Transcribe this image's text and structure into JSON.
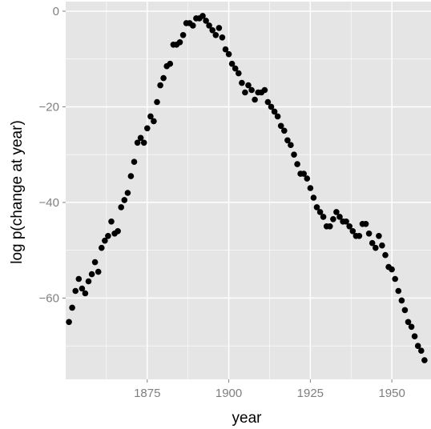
{
  "chart_data": {
    "type": "scatter",
    "xlabel": "year",
    "ylabel": "log p(change at year)",
    "xlim": [
      1850,
      1962
    ],
    "ylim": [
      -77,
      2
    ],
    "x_ticks": [
      1875,
      1900,
      1925,
      1950
    ],
    "x_tick_labels": [
      "1875",
      "1900",
      "1925",
      "1950"
    ],
    "y_ticks": [
      0,
      -20,
      -40,
      -60
    ],
    "y_tick_labels": [
      "0",
      "−20",
      "−40",
      "−60"
    ],
    "grid": true,
    "legend": "none",
    "colors": {
      "panel_background": "#e5e5e5",
      "grid": "#ffffff",
      "point": "#000000",
      "tick_label": "#7f7f7f"
    },
    "points": [
      [
        1851,
        -65
      ],
      [
        1852,
        -62
      ],
      [
        1853,
        -58.5
      ],
      [
        1854,
        -56
      ],
      [
        1855,
        -58
      ],
      [
        1856,
        -59
      ],
      [
        1857,
        -56.5
      ],
      [
        1858,
        -55
      ],
      [
        1859,
        -52.5
      ],
      [
        1860,
        -54.5
      ],
      [
        1861,
        -49.5
      ],
      [
        1862,
        -48
      ],
      [
        1863,
        -47
      ],
      [
        1864,
        -44
      ],
      [
        1865,
        -46.5
      ],
      [
        1866,
        -46
      ],
      [
        1867,
        -41
      ],
      [
        1868,
        -39.5
      ],
      [
        1869,
        -38
      ],
      [
        1870,
        -34.5
      ],
      [
        1871,
        -31.5
      ],
      [
        1872,
        -27.5
      ],
      [
        1873,
        -26.5
      ],
      [
        1874,
        -27.5
      ],
      [
        1875,
        -24.5
      ],
      [
        1876,
        -22
      ],
      [
        1877,
        -23
      ],
      [
        1878,
        -19
      ],
      [
        1879,
        -15.5
      ],
      [
        1880,
        -14
      ],
      [
        1881,
        -11.5
      ],
      [
        1882,
        -11
      ],
      [
        1883,
        -7
      ],
      [
        1884,
        -7
      ],
      [
        1885,
        -6.5
      ],
      [
        1886,
        -5
      ],
      [
        1887,
        -2.5
      ],
      [
        1888,
        -2.5
      ],
      [
        1889,
        -3
      ],
      [
        1890,
        -1.5
      ],
      [
        1891,
        -1.5
      ],
      [
        1892,
        -1
      ],
      [
        1893,
        -2
      ],
      [
        1894,
        -3
      ],
      [
        1895,
        -4
      ],
      [
        1896,
        -5
      ],
      [
        1897,
        -3.5
      ],
      [
        1898,
        -5.5
      ],
      [
        1899,
        -8
      ],
      [
        1900,
        -9
      ],
      [
        1901,
        -11
      ],
      [
        1902,
        -12
      ],
      [
        1903,
        -13
      ],
      [
        1904,
        -15
      ],
      [
        1905,
        -17
      ],
      [
        1906,
        -15.5
      ],
      [
        1907,
        -16.5
      ],
      [
        1908,
        -18.5
      ],
      [
        1909,
        -17
      ],
      [
        1910,
        -17
      ],
      [
        1911,
        -16.5
      ],
      [
        1912,
        -19
      ],
      [
        1913,
        -20
      ],
      [
        1914,
        -21
      ],
      [
        1915,
        -22
      ],
      [
        1916,
        -24
      ],
      [
        1917,
        -25
      ],
      [
        1918,
        -27
      ],
      [
        1919,
        -28
      ],
      [
        1920,
        -30
      ],
      [
        1921,
        -32
      ],
      [
        1922,
        -34
      ],
      [
        1923,
        -34
      ],
      [
        1924,
        -35
      ],
      [
        1925,
        -37
      ],
      [
        1926,
        -39
      ],
      [
        1927,
        -41
      ],
      [
        1928,
        -42
      ],
      [
        1929,
        -43
      ],
      [
        1930,
        -45
      ],
      [
        1931,
        -45
      ],
      [
        1932,
        -43.5
      ],
      [
        1933,
        -42
      ],
      [
        1934,
        -43
      ],
      [
        1935,
        -44
      ],
      [
        1936,
        -44
      ],
      [
        1937,
        -45
      ],
      [
        1938,
        -46
      ],
      [
        1939,
        -47
      ],
      [
        1940,
        -47
      ],
      [
        1941,
        -44.5
      ],
      [
        1942,
        -44.5
      ],
      [
        1943,
        -46.5
      ],
      [
        1944,
        -48.5
      ],
      [
        1945,
        -49.5
      ],
      [
        1946,
        -47
      ],
      [
        1947,
        -49
      ],
      [
        1948,
        -51
      ],
      [
        1949,
        -53.5
      ],
      [
        1950,
        -54
      ],
      [
        1951,
        -56
      ],
      [
        1952,
        -58.5
      ],
      [
        1953,
        -60.5
      ],
      [
        1954,
        -62.5
      ],
      [
        1955,
        -65
      ],
      [
        1956,
        -66
      ],
      [
        1957,
        -68
      ],
      [
        1958,
        -70
      ],
      [
        1959,
        -71
      ],
      [
        1960,
        -73
      ]
    ]
  }
}
